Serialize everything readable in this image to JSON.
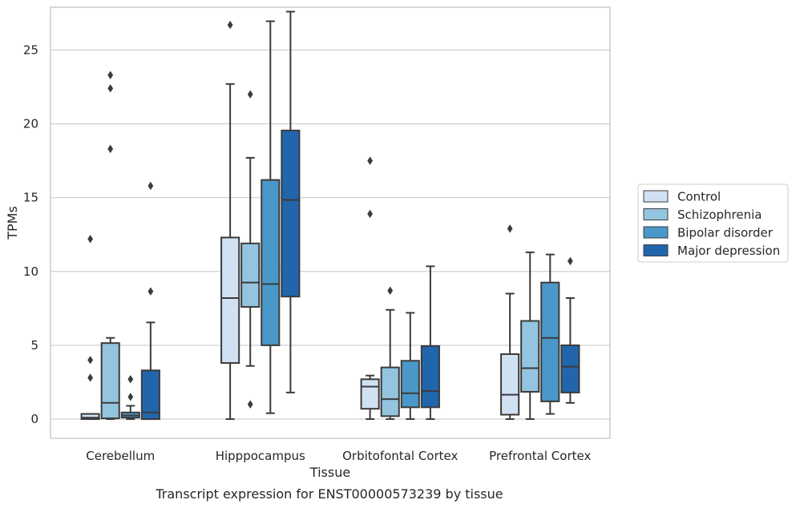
{
  "chart_data": {
    "type": "box",
    "title": "Transcript expression for ENST00000573239 by tissue",
    "xlabel": "Tissue",
    "ylabel": "TPMs",
    "ylim": [
      -1.3,
      27.9
    ],
    "yticks": [
      0,
      5,
      10,
      15,
      20,
      25
    ],
    "grid": "horizontal",
    "legend_placement": "right",
    "categories": [
      "Cerebellum",
      "Hipppocampus",
      "Orbitofontal Cortex",
      "Prefrontal Cortex"
    ],
    "series": [
      {
        "name": "Control",
        "color": "#d0e1f2",
        "boxes": [
          {
            "whislo": 0.0,
            "q1": 0.0,
            "med": 0.1,
            "q3": 0.35,
            "whishi": 0.35,
            "fliers": [
              12.2,
              4.0,
              2.8
            ]
          },
          {
            "whislo": 0.0,
            "q1": 3.8,
            "med": 8.2,
            "q3": 12.3,
            "whishi": 22.7,
            "fliers": [
              26.7
            ]
          },
          {
            "whislo": 0.0,
            "q1": 0.7,
            "med": 2.2,
            "q3": 2.7,
            "whishi": 2.95,
            "fliers": [
              17.5,
              13.9
            ]
          },
          {
            "whislo": 0.0,
            "q1": 0.3,
            "med": 1.65,
            "q3": 4.4,
            "whishi": 8.5,
            "fliers": [
              12.9
            ]
          }
        ]
      },
      {
        "name": "Schizophrenia",
        "color": "#94c4df",
        "boxes": [
          {
            "whislo": 0.0,
            "q1": 0.05,
            "med": 1.1,
            "q3": 5.15,
            "whishi": 5.5,
            "fliers": [
              23.3,
              22.4,
              18.3
            ]
          },
          {
            "whislo": 3.6,
            "q1": 7.6,
            "med": 9.25,
            "q3": 11.9,
            "whishi": 17.7,
            "fliers": [
              22.0,
              1.0
            ]
          },
          {
            "whislo": 0.0,
            "q1": 0.2,
            "med": 1.35,
            "q3": 3.5,
            "whishi": 7.4,
            "fliers": [
              8.7
            ]
          },
          {
            "whislo": 0.0,
            "q1": 1.85,
            "med": 3.45,
            "q3": 6.65,
            "whishi": 11.3,
            "fliers": []
          }
        ]
      },
      {
        "name": "Bipolar disorder",
        "color": "#4a98c9",
        "boxes": [
          {
            "whislo": 0.0,
            "q1": 0.1,
            "med": 0.25,
            "q3": 0.45,
            "whishi": 0.9,
            "fliers": [
              2.7,
              1.5
            ]
          },
          {
            "whislo": 0.4,
            "q1": 5.0,
            "med": 9.15,
            "q3": 16.2,
            "whishi": 26.95,
            "fliers": []
          },
          {
            "whislo": 0.0,
            "q1": 0.8,
            "med": 1.75,
            "q3": 3.95,
            "whishi": 7.2,
            "fliers": []
          },
          {
            "whislo": 0.35,
            "q1": 1.2,
            "med": 5.5,
            "q3": 9.25,
            "whishi": 11.15,
            "fliers": []
          }
        ]
      },
      {
        "name": "Major depression",
        "color": "#2166ac",
        "boxes": [
          {
            "whislo": 0.0,
            "q1": 0.0,
            "med": 0.45,
            "q3": 3.3,
            "whishi": 6.55,
            "fliers": [
              15.8,
              8.65
            ]
          },
          {
            "whislo": 1.8,
            "q1": 8.3,
            "med": 14.85,
            "q3": 19.55,
            "whishi": 27.6,
            "fliers": []
          },
          {
            "whislo": 0.0,
            "q1": 0.8,
            "med": 1.9,
            "q3": 4.95,
            "whishi": 10.35,
            "fliers": []
          },
          {
            "whislo": 1.1,
            "q1": 1.8,
            "med": 3.55,
            "q3": 5.0,
            "whishi": 8.2,
            "fliers": [
              10.7
            ]
          }
        ]
      }
    ]
  }
}
